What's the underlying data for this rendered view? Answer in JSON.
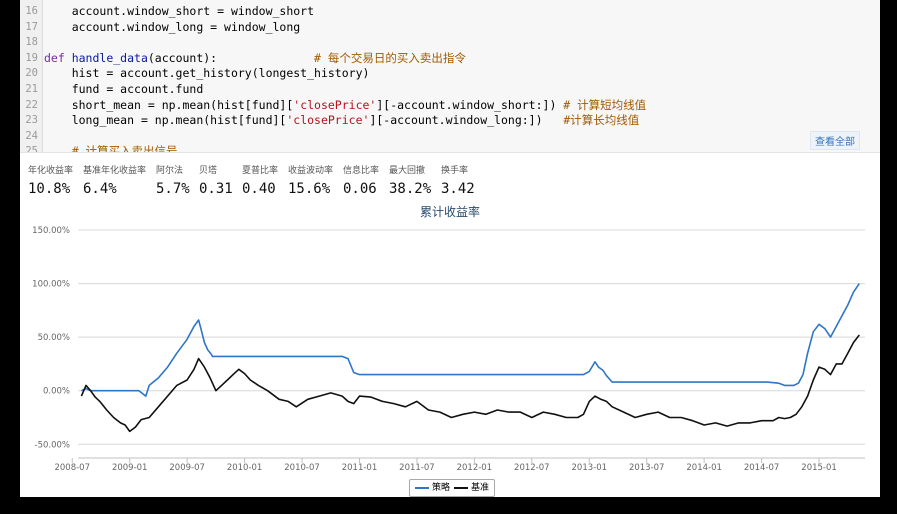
{
  "code": {
    "lines": [
      {
        "num": "16",
        "indent": "    ",
        "parts": [
          [
            "",
            "account.window_short = window_short"
          ]
        ]
      },
      {
        "num": "17",
        "indent": "    ",
        "parts": [
          [
            "",
            "account.window_long = window_long"
          ]
        ]
      },
      {
        "num": "18",
        "indent": "",
        "parts": [
          [
            "",
            ""
          ]
        ]
      },
      {
        "num": "19",
        "indent": "",
        "parts": [
          [
            "kw",
            "def "
          ],
          [
            "fn",
            "handle_data"
          ],
          [
            "",
            "(account):              "
          ],
          [
            "cm",
            "# 每个交易日的买入卖出指令"
          ]
        ]
      },
      {
        "num": "20",
        "indent": "    ",
        "parts": [
          [
            "",
            "hist = account.get_history(longest_history)"
          ]
        ]
      },
      {
        "num": "21",
        "indent": "    ",
        "parts": [
          [
            "",
            "fund = account.fund"
          ]
        ]
      },
      {
        "num": "22",
        "indent": "    ",
        "parts": [
          [
            "",
            "short_mean = np.mean(hist[fund]["
          ],
          [
            "str",
            "'closePrice'"
          ],
          [
            "",
            "][-account.window_short:]) "
          ],
          [
            "cm",
            "# 计算短均线值"
          ]
        ]
      },
      {
        "num": "23",
        "indent": "    ",
        "parts": [
          [
            "",
            "long_mean = np.mean(hist[fund]["
          ],
          [
            "str",
            "'closePrice'"
          ],
          [
            "",
            "][-account.window_long:])   "
          ],
          [
            "cm",
            "#计算长均线值"
          ]
        ]
      },
      {
        "num": "24",
        "indent": "",
        "parts": [
          [
            "",
            ""
          ]
        ]
      },
      {
        "num": "25",
        "indent": "    ",
        "parts": [
          [
            "cm",
            "# 计算买入卖出信号"
          ]
        ]
      }
    ],
    "view_all_label": "查看全部"
  },
  "metrics": [
    {
      "label": "年化收益率",
      "value": "10.8%"
    },
    {
      "label": "基准年化收益率",
      "value": "6.4%"
    },
    {
      "label": "阿尔法",
      "value": "5.7%"
    },
    {
      "label": "贝塔",
      "value": "0.31"
    },
    {
      "label": "夏普比率",
      "value": "0.40"
    },
    {
      "label": "收益波动率",
      "value": "15.6%"
    },
    {
      "label": "信息比率",
      "value": "0.06"
    },
    {
      "label": "最大回撤",
      "value": "38.2%"
    },
    {
      "label": "换手率",
      "value": "3.42"
    }
  ],
  "chart_data": {
    "type": "line",
    "title": "累计收益率",
    "yticks": [
      "150.00%",
      "100.00%",
      "50.00%",
      "0.00%",
      "-50.00%"
    ],
    "ytick_values": [
      150,
      100,
      50,
      0,
      -50
    ],
    "ylim": [
      -60,
      150
    ],
    "xticks": [
      "2008-07",
      "2009-01",
      "2009-07",
      "2010-01",
      "2010-07",
      "2011-01",
      "2011-07",
      "2012-01",
      "2012-07",
      "2013-01",
      "2013-07",
      "2014-01",
      "2014-07",
      "2015-01"
    ],
    "xlim": [
      2008.55,
      2015.4
    ],
    "grid": true,
    "legend_position": "bottom-center",
    "series": [
      {
        "name": "策略",
        "color": "#2e75c9",
        "x": [
          2008.58,
          2008.62,
          2008.66,
          2008.72,
          2008.85,
          2009.0,
          2009.08,
          2009.14,
          2009.17,
          2009.25,
          2009.33,
          2009.41,
          2009.5,
          2009.56,
          2009.6,
          2009.62,
          2009.65,
          2009.68,
          2009.71,
          2009.72,
          2010.0,
          2010.5,
          2010.85,
          2010.9,
          2010.95,
          2011.0,
          2011.5,
          2012.0,
          2012.5,
          2012.95,
          2013.0,
          2013.05,
          2013.08,
          2013.12,
          2013.15,
          2013.2,
          2013.3,
          2013.6,
          2014.0,
          2014.3,
          2014.55,
          2014.65,
          2014.7,
          2014.78,
          2014.82,
          2014.86,
          2014.9,
          2014.95,
          2015.0,
          2015.05,
          2015.1,
          2015.15,
          2015.2,
          2015.25,
          2015.3,
          2015.35
        ],
        "values": [
          0,
          2,
          0,
          0,
          0,
          0,
          0,
          -5,
          5,
          12,
          22,
          35,
          48,
          60,
          66,
          58,
          45,
          38,
          34,
          32,
          32,
          32,
          32,
          30,
          17,
          15,
          15,
          15,
          15,
          15,
          18,
          27,
          22,
          19,
          14,
          8,
          8,
          8,
          8,
          8,
          8,
          7,
          5,
          5,
          7,
          15,
          35,
          55,
          62,
          58,
          50,
          60,
          70,
          80,
          92,
          100
        ]
      },
      {
        "name": "基准",
        "color": "#111111",
        "x": [
          2008.58,
          2008.62,
          2008.66,
          2008.7,
          2008.74,
          2008.8,
          2008.86,
          2008.92,
          2008.96,
          2009.0,
          2009.05,
          2009.1,
          2009.17,
          2009.25,
          2009.33,
          2009.41,
          2009.5,
          2009.56,
          2009.6,
          2009.65,
          2009.7,
          2009.75,
          2009.8,
          2009.85,
          2009.9,
          2009.95,
          2010.0,
          2010.05,
          2010.12,
          2010.2,
          2010.3,
          2010.38,
          2010.45,
          2010.55,
          2010.65,
          2010.75,
          2010.85,
          2010.9,
          2010.95,
          2011.0,
          2011.1,
          2011.2,
          2011.3,
          2011.4,
          2011.5,
          2011.6,
          2011.7,
          2011.8,
          2011.9,
          2012.0,
          2012.1,
          2012.2,
          2012.3,
          2012.4,
          2012.5,
          2012.6,
          2012.7,
          2012.8,
          2012.9,
          2012.95,
          2013.0,
          2013.05,
          2013.1,
          2013.15,
          2013.2,
          2013.3,
          2013.4,
          2013.5,
          2013.6,
          2013.7,
          2013.8,
          2013.9,
          2014.0,
          2014.1,
          2014.2,
          2014.3,
          2014.4,
          2014.5,
          2014.6,
          2014.65,
          2014.7,
          2014.75,
          2014.8,
          2014.85,
          2014.9,
          2014.95,
          2015.0,
          2015.05,
          2015.1,
          2015.15,
          2015.2,
          2015.25,
          2015.3,
          2015.35
        ],
        "values": [
          -5,
          5,
          0,
          -6,
          -10,
          -18,
          -25,
          -30,
          -32,
          -38,
          -34,
          -27,
          -25,
          -15,
          -5,
          5,
          10,
          20,
          30,
          22,
          12,
          0,
          5,
          10,
          15,
          20,
          16,
          10,
          5,
          0,
          -8,
          -10,
          -15,
          -8,
          -5,
          -2,
          -5,
          -10,
          -12,
          -5,
          -6,
          -10,
          -12,
          -15,
          -10,
          -18,
          -20,
          -25,
          -22,
          -20,
          -22,
          -18,
          -20,
          -20,
          -25,
          -20,
          -22,
          -25,
          -25,
          -22,
          -10,
          -5,
          -8,
          -10,
          -15,
          -20,
          -25,
          -22,
          -20,
          -25,
          -25,
          -28,
          -32,
          -30,
          -33,
          -30,
          -30,
          -28,
          -28,
          -25,
          -26,
          -25,
          -22,
          -15,
          -5,
          10,
          22,
          20,
          15,
          25,
          25,
          35,
          45,
          52
        ]
      }
    ]
  },
  "legend": [
    {
      "label": "策略",
      "color": "#2e75c9"
    },
    {
      "label": "基准",
      "color": "#111111"
    }
  ]
}
